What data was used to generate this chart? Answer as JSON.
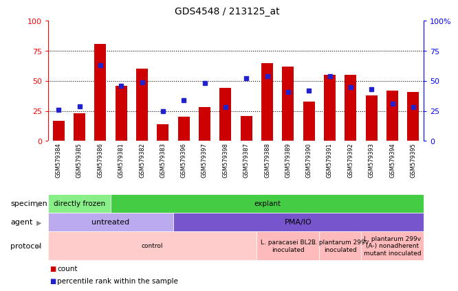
{
  "title": "GDS4548 / 213125_at",
  "samples": [
    "GSM579384",
    "GSM579385",
    "GSM579386",
    "GSM579381",
    "GSM579382",
    "GSM579383",
    "GSM579396",
    "GSM579397",
    "GSM579398",
    "GSM579387",
    "GSM579388",
    "GSM579389",
    "GSM579390",
    "GSM579391",
    "GSM579392",
    "GSM579393",
    "GSM579394",
    "GSM579395"
  ],
  "bar_values": [
    17,
    23,
    81,
    46,
    60,
    14,
    20,
    28,
    44,
    21,
    65,
    62,
    33,
    55,
    55,
    38,
    42,
    41
  ],
  "dot_values": [
    26,
    29,
    63,
    46,
    49,
    25,
    34,
    48,
    28,
    52,
    54,
    41,
    42,
    54,
    45,
    43,
    31,
    28
  ],
  "bar_color": "#cc0000",
  "dot_color": "#2222cc",
  "ylim_min": 0,
  "ylim_max": 100,
  "yticks": [
    0,
    25,
    50,
    75,
    100
  ],
  "specimen_label": "specimen",
  "specimen_sections": [
    {
      "text": "directly frozen",
      "start": 0,
      "end": 3,
      "color": "#88ee88"
    },
    {
      "text": "explant",
      "start": 3,
      "end": 18,
      "color": "#44cc44"
    }
  ],
  "agent_label": "agent",
  "agent_sections": [
    {
      "text": "untreated",
      "start": 0,
      "end": 6,
      "color": "#bbaaee"
    },
    {
      "text": "PMA/IO",
      "start": 6,
      "end": 18,
      "color": "#7755cc"
    }
  ],
  "protocol_label": "protocol",
  "protocol_sections": [
    {
      "text": "control",
      "start": 0,
      "end": 10,
      "color": "#ffcccc"
    },
    {
      "text": "L. paracasei BL23\ninoculated",
      "start": 10,
      "end": 13,
      "color": "#ffbbbb"
    },
    {
      "text": "L. plantarum 299v\ninoculated",
      "start": 13,
      "end": 15,
      "color": "#ffbbbb"
    },
    {
      "text": "L. plantarum 299v\n(A-) nonadherent\nmutant inoculated",
      "start": 15,
      "end": 18,
      "color": "#ffbbbb"
    }
  ],
  "xtick_bg": "#cccccc",
  "legend_count_color": "#cc0000",
  "legend_dot_color": "#2222cc",
  "right_ytick_labels": [
    "0",
    "25",
    "50",
    "75",
    "100%"
  ]
}
